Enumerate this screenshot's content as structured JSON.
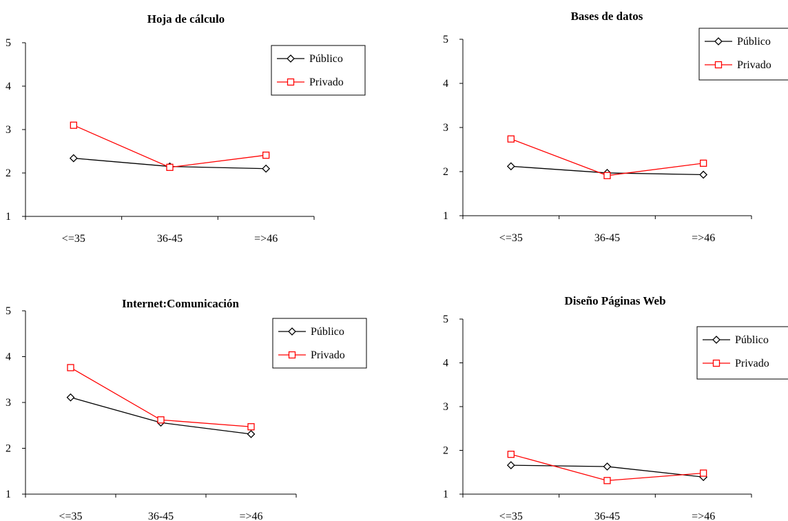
{
  "legend_labels": [
    "Público",
    "Privado"
  ],
  "colors": {
    "publico": "#000000",
    "privado": "#ff0000"
  },
  "chart_data": [
    {
      "type": "line",
      "title": "Hoja de cálculo",
      "categories": [
        "<=35",
        "36-45",
        "=>46"
      ],
      "y_ticks": [
        "1",
        "2",
        "3",
        "4",
        "5"
      ],
      "ylim": [
        1,
        5
      ],
      "legend_position": "top-right",
      "series": [
        {
          "name": "Público",
          "values": [
            2.34,
            2.15,
            2.1
          ]
        },
        {
          "name": "Privado",
          "values": [
            3.1,
            2.13,
            2.41
          ]
        }
      ]
    },
    {
      "type": "line",
      "title": "Bases de datos",
      "categories": [
        "<=35",
        "36-45",
        "=>46"
      ],
      "y_ticks": [
        "1",
        "2",
        "3",
        "4",
        "5"
      ],
      "ylim": [
        1,
        5
      ],
      "legend_position": "top-right",
      "series": [
        {
          "name": "Público",
          "values": [
            2.12,
            1.97,
            1.93
          ]
        },
        {
          "name": "Privado",
          "values": [
            2.74,
            1.91,
            2.19
          ]
        }
      ]
    },
    {
      "type": "line",
      "title": "Internet:Comunicación",
      "categories": [
        "<=35",
        "36-45",
        "=>46"
      ],
      "y_ticks": [
        "1",
        "2",
        "3",
        "4",
        "5"
      ],
      "ylim": [
        1,
        5
      ],
      "legend_position": "top-right",
      "series": [
        {
          "name": "Público",
          "values": [
            3.11,
            2.56,
            2.31
          ]
        },
        {
          "name": "Privado",
          "values": [
            3.76,
            2.62,
            2.47
          ]
        }
      ]
    },
    {
      "type": "line",
      "title": "Diseño Páginas Web",
      "categories": [
        "<=35",
        "36-45",
        "=>46"
      ],
      "y_ticks": [
        "1",
        "2",
        "3",
        "4",
        "5"
      ],
      "ylim": [
        1,
        5
      ],
      "legend_position": "top-right",
      "series": [
        {
          "name": "Público",
          "values": [
            1.66,
            1.63,
            1.39
          ]
        },
        {
          "name": "Privado",
          "values": [
            1.91,
            1.31,
            1.48
          ]
        }
      ]
    }
  ]
}
